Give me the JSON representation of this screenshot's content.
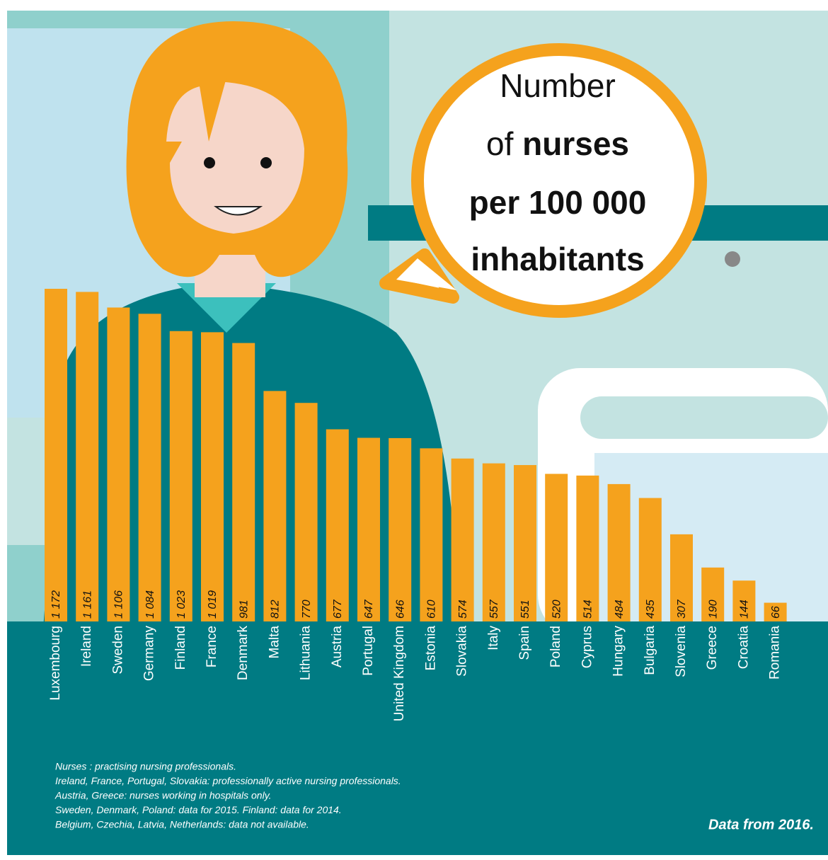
{
  "chart_data": {
    "type": "bar",
    "title_parts": [
      "Number",
      "of",
      "nurses",
      "per 100 000",
      "inhabitants"
    ],
    "categories": [
      "Luxembourg",
      "Ireland",
      "Sweden",
      "Germany",
      "Finland",
      "France",
      "Denmark",
      "Malta",
      "Lithuania",
      "Austria",
      "Portugal",
      "United Kingdom",
      "Estonia",
      "Slovakia",
      "Italy",
      "Spain",
      "Poland",
      "Cyprus",
      "Hungary",
      "Bulgaria",
      "Slovenia",
      "Greece",
      "Croatia",
      "Romania"
    ],
    "values": [
      1172,
      1161,
      1106,
      1084,
      1023,
      1019,
      981,
      812,
      770,
      677,
      647,
      646,
      610,
      574,
      557,
      551,
      520,
      514,
      484,
      435,
      307,
      190,
      144,
      66
    ],
    "value_labels": [
      "1 172",
      "1 161",
      "1 106",
      "1 084",
      "1 023",
      "1 019",
      "981",
      "812",
      "770",
      "677",
      "647",
      "646",
      "610",
      "574",
      "557",
      "551",
      "520",
      "514",
      "484",
      "435",
      "307",
      "190",
      "144",
      "66"
    ],
    "color": "#f5a21d",
    "notes": [
      "Nurses : practising nursing professionals.",
      "Ireland, France, Portugal, Slovakia: professionally active nursing professionals.",
      "Austria, Greece: nurses working in hospitals only.",
      "Sweden, Denmark, Poland: data for 2015. Finland: data for 2014.",
      "Belgium, Czechia, Latvia, Netherlands: data not available."
    ],
    "source": "Data from 2016."
  }
}
